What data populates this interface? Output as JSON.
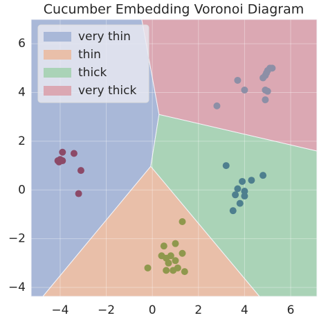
{
  "chart_data": {
    "type": "voronoi",
    "title": "Cucumber Embedding Voronoi Diagram",
    "xlim": [
      -5.26,
      7.14
    ],
    "ylim": [
      -4.37,
      7.0
    ],
    "xticks": [
      {
        "value": -4,
        "label": "−4"
      },
      {
        "value": -2,
        "label": "−2"
      },
      0,
      2,
      4,
      6
    ],
    "yticks": [
      {
        "value": -4,
        "label": "−4"
      },
      {
        "value": -2,
        "label": "−2"
      },
      0,
      2,
      4,
      6
    ],
    "grid": true,
    "legend": "upper left",
    "regions": [
      {
        "name": "very thin",
        "color": "#a9b8d8",
        "x": [
          -5.26,
          -0.46,
          0.29,
          -0.07,
          -4.75,
          -5.26
        ],
        "y": [
          7.0,
          7.0,
          3.1,
          0.97,
          -4.37,
          -4.37
        ]
      },
      {
        "name": "thin",
        "color": "#e9bfa9",
        "x": [
          -4.75,
          -0.07,
          4.65
        ],
        "y": [
          -4.37,
          0.97,
          -4.37
        ]
      },
      {
        "name": "thick",
        "color": "#aad3b7",
        "x": [
          -0.07,
          0.29,
          7.14,
          7.14,
          4.65
        ],
        "y": [
          0.97,
          3.1,
          1.6,
          -4.37,
          -4.37
        ]
      },
      {
        "name": "very thick",
        "color": "#dba8b3",
        "x": [
          -0.46,
          7.14,
          7.14,
          0.29
        ],
        "y": [
          7.0,
          7.0,
          1.6,
          3.1
        ]
      }
    ],
    "points": [
      {
        "color": "#8c4a68",
        "x": [
          -4.1,
          -4.0,
          -3.9,
          -3.9,
          -3.4,
          -3.1,
          -3.2,
          -4.05
        ],
        "y": [
          1.2,
          1.25,
          1.2,
          1.55,
          1.5,
          0.8,
          -0.15,
          1.15
        ]
      },
      {
        "color": "#8f984d",
        "x": [
          -0.2,
          0.5,
          0.4,
          0.6,
          0.8,
          0.7,
          1.0,
          1.1,
          1.3,
          1.3,
          1.4,
          0.6,
          1.0,
          0.9
        ],
        "y": [
          -3.2,
          -2.3,
          -2.7,
          -2.8,
          -2.7,
          -3.0,
          -2.9,
          -3.2,
          -2.6,
          -1.3,
          -3.35,
          -3.3,
          -2.2,
          -3.3
        ]
      },
      {
        "color": "#4e7f8e",
        "x": [
          3.2,
          3.7,
          3.6,
          3.5,
          3.8,
          4.0,
          4.0,
          4.3,
          4.8,
          3.9
        ],
        "y": [
          1.0,
          0.05,
          -0.2,
          -0.85,
          -0.55,
          -0.25,
          -0.05,
          0.4,
          0.6,
          0.35
        ]
      },
      {
        "color": "#8d8fa6",
        "x": [
          2.8,
          3.7,
          4.0,
          4.8,
          4.9,
          4.95,
          5.0,
          5.1,
          4.9,
          5.0,
          4.9,
          5.2
        ],
        "y": [
          3.45,
          4.5,
          4.1,
          4.6,
          4.7,
          4.8,
          4.9,
          5.0,
          4.1,
          4.05,
          3.7,
          5.0
        ]
      }
    ]
  }
}
